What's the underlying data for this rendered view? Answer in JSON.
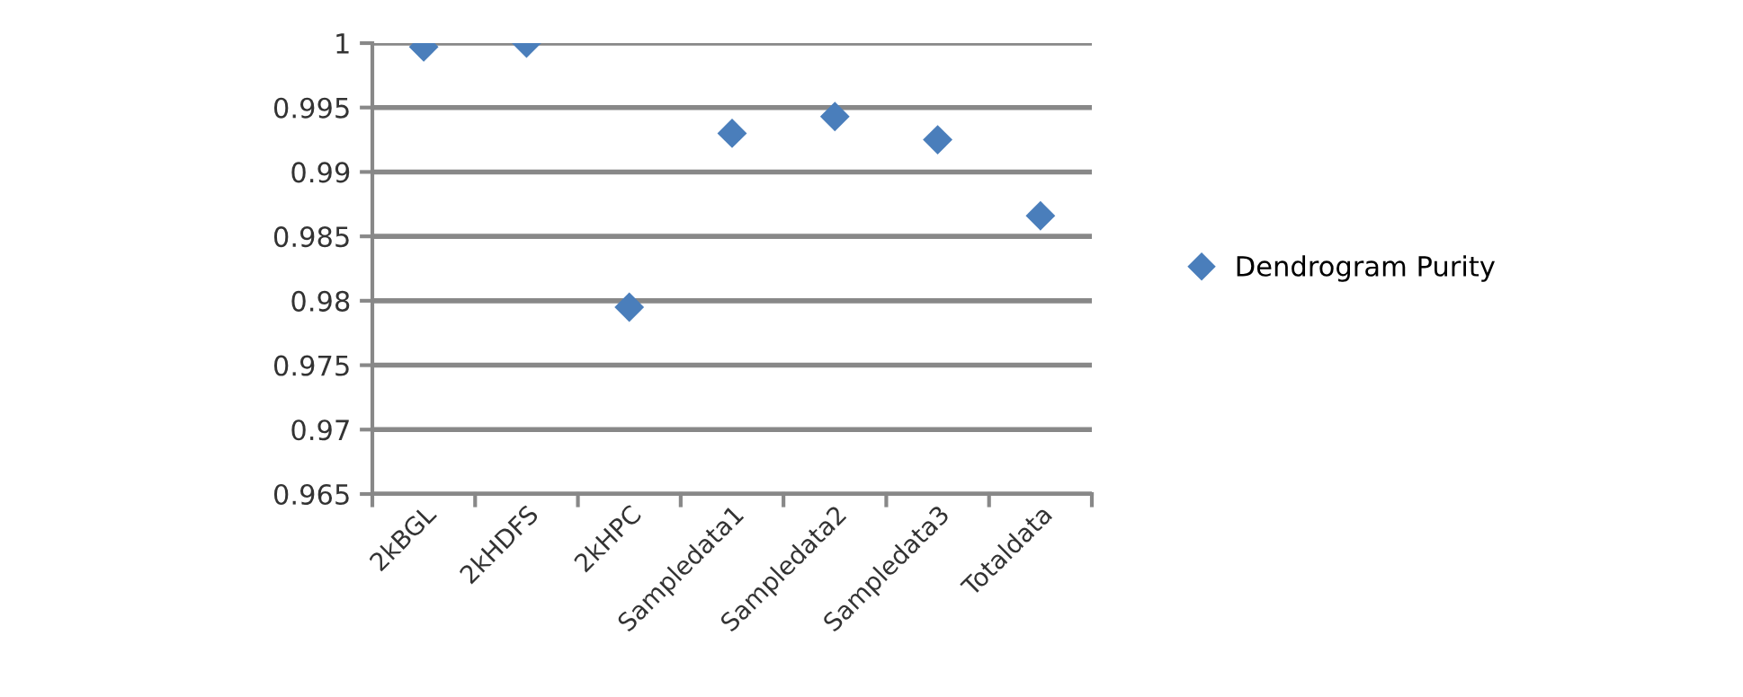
{
  "chart_data": {
    "type": "scatter",
    "categories": [
      "2kBGL",
      "2kHDFS",
      "2kHPC",
      "Sampledata1",
      "Sampledata2",
      "Sampledata3",
      "Totaldata"
    ],
    "series": [
      {
        "name": "Dendrogram Purity",
        "color": "#4a7ebb",
        "values": [
          0.9997,
          1.0,
          0.9795,
          0.993,
          0.9943,
          0.9925,
          0.9866
        ]
      }
    ],
    "ylim": [
      0.965,
      1
    ],
    "yticks": [
      0.965,
      0.97,
      0.975,
      0.98,
      0.985,
      0.99,
      0.995,
      1
    ],
    "grid": "y",
    "legend": "right",
    "marker": "diamond"
  }
}
